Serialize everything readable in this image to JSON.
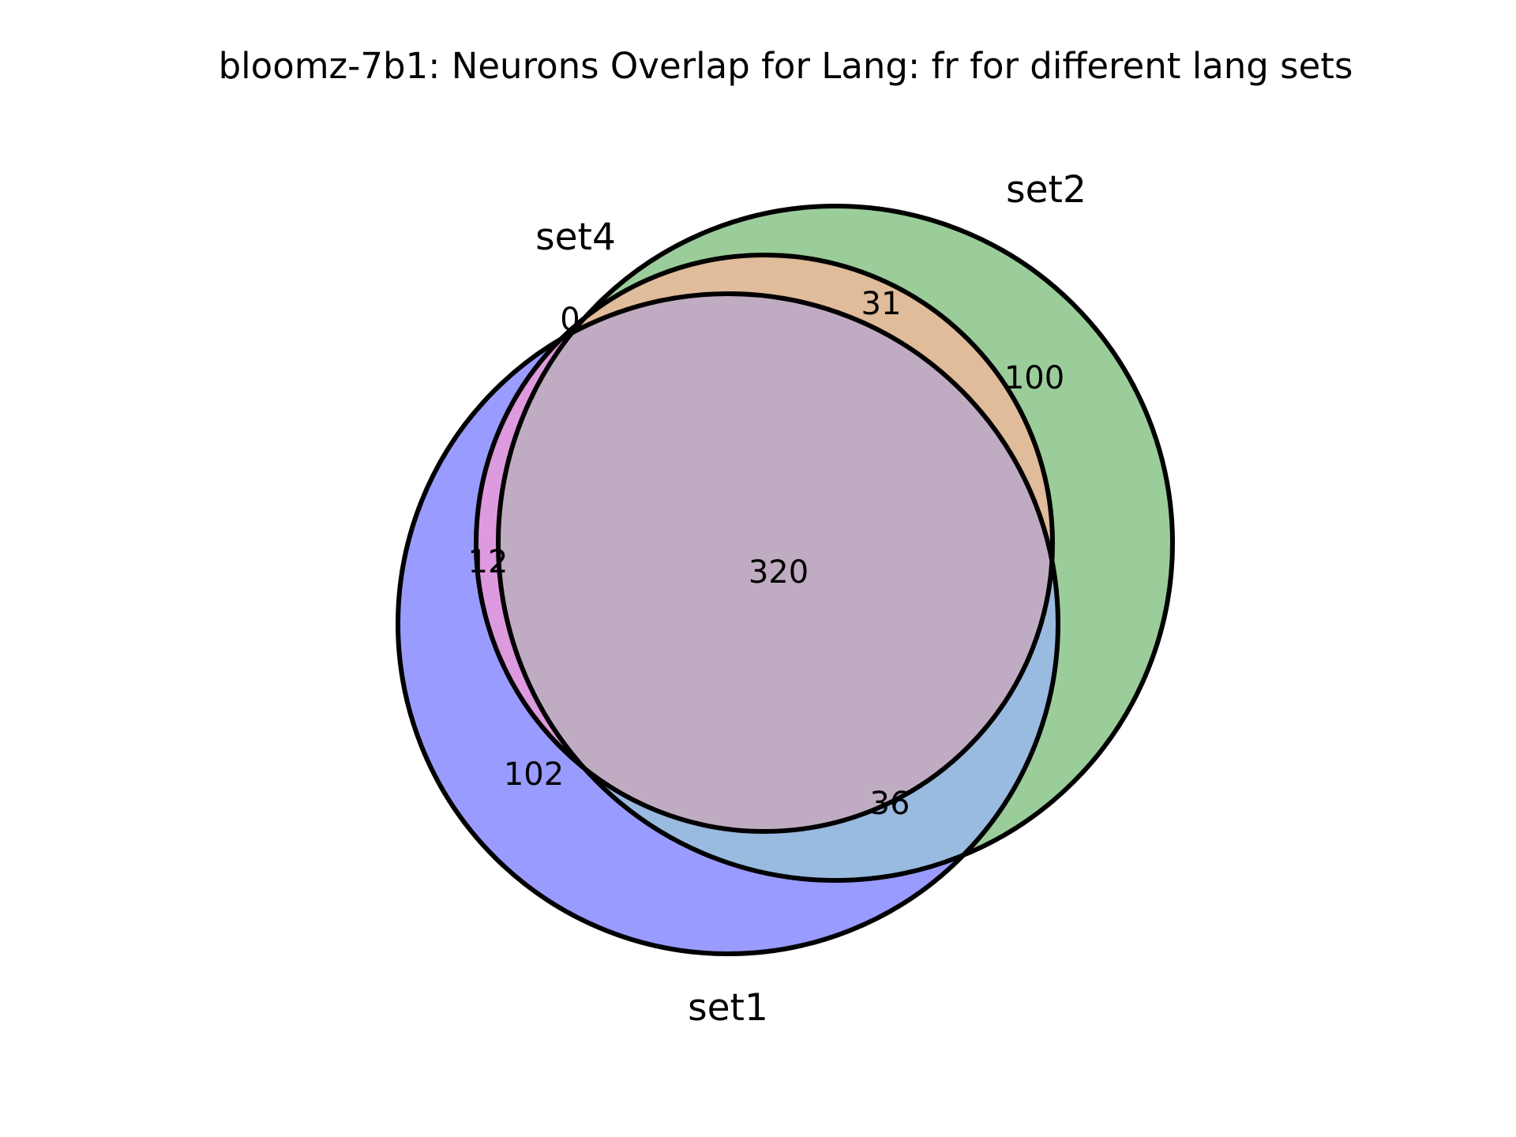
{
  "chart_data": {
    "type": "venn",
    "title": "bloomz-7b1: Neurons Overlap for Lang: fr for different lang sets",
    "sets": [
      {
        "name": "set1",
        "color": "#9a9bfe"
      },
      {
        "name": "set2",
        "color": "#9bcd9a"
      },
      {
        "name": "set4",
        "color": "#e0bc9a"
      }
    ],
    "regions": [
      {
        "sets": [
          "set1",
          "set2",
          "set4"
        ],
        "value": 320,
        "color": "#c0acc2"
      },
      {
        "sets": [
          "set1"
        ],
        "value": 102,
        "color": "#9a9bfe"
      },
      {
        "sets": [
          "set2"
        ],
        "value": 100,
        "color": "#9bcd9a"
      },
      {
        "sets": [
          "set2",
          "set4"
        ],
        "value": 31,
        "color": "#e0bc9a"
      },
      {
        "sets": [
          "set1",
          "set2"
        ],
        "value": 36,
        "color": "#9abbe0"
      },
      {
        "sets": [
          "set1",
          "set4"
        ],
        "value": 12,
        "color": "#de9ade"
      },
      {
        "sets": [
          "set4"
        ],
        "value": 0,
        "color": "#e0bc9a"
      }
    ]
  }
}
